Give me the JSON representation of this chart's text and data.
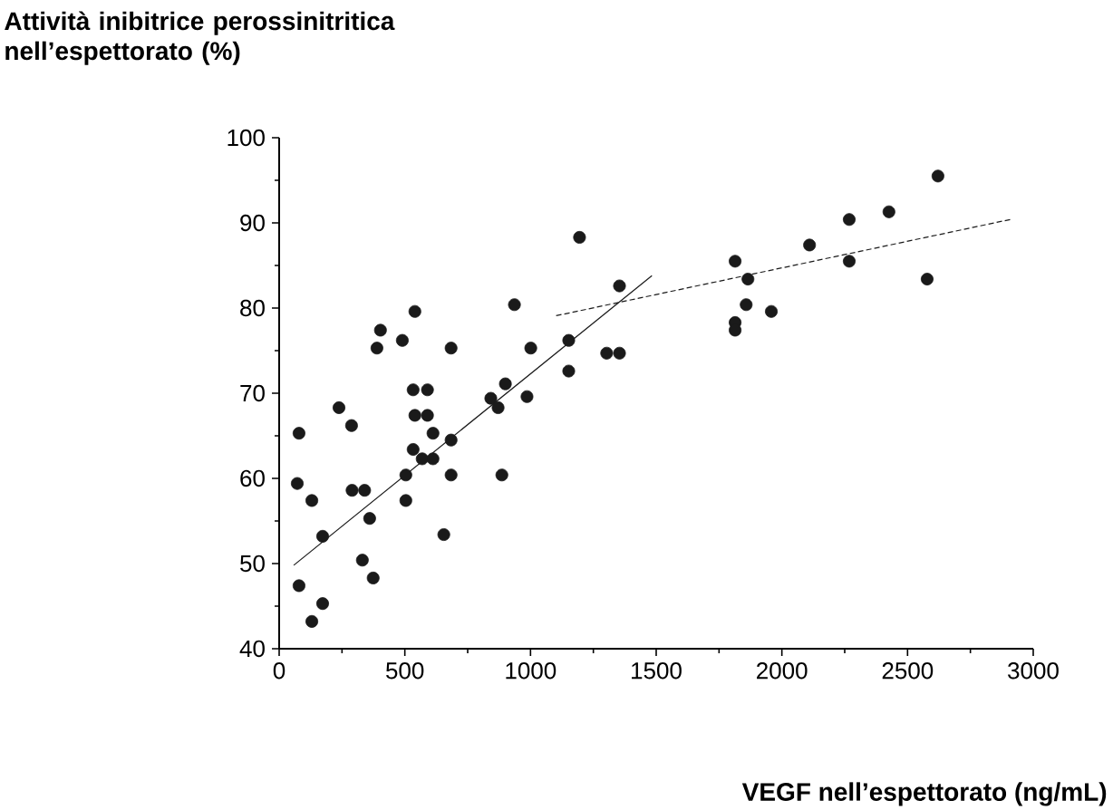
{
  "chart_data": {
    "type": "scatter",
    "annotations": [
      "Attività inibitrice perossinitritica nell’espettorato (%)"
    ],
    "xlabel": "VEGF nell’espettorato (ng/mL)",
    "xlim": [
      0,
      3000
    ],
    "ylim": [
      40,
      100
    ],
    "xticks": [
      0,
      500,
      1000,
      1500,
      2000,
      2500,
      3000
    ],
    "yticks": [
      40,
      50,
      60,
      70,
      80,
      90,
      100
    ],
    "series": [
      {
        "type": "scatter",
        "color": "#1a1a1a",
        "marker": "circle",
        "x": [
          79,
          72,
          130,
          79,
          130,
          173,
          173,
          238,
          288,
          290,
          340,
          360,
          331,
          374,
          389,
          403,
          490,
          540,
          504,
          504,
          533,
          590,
          540,
          590,
          533,
          569,
          612,
          612,
          655,
          684,
          684,
          684,
          842,
          871,
          900,
          886,
          936,
          1001,
          986,
          1152,
          1152,
          1195,
          1354,
          1303,
          1354,
          2621,
          2426,
          2268,
          2110,
          1814,
          1865,
          2268,
          2578,
          1858,
          1958,
          1814,
          1814
        ],
        "values": [
          65.3,
          59.4,
          57.4,
          47.4,
          43.2,
          45.3,
          53.2,
          68.3,
          66.2,
          58.6,
          58.6,
          55.3,
          50.4,
          48.3,
          75.3,
          77.4,
          76.2,
          79.6,
          60.4,
          57.4,
          70.4,
          70.4,
          67.4,
          67.4,
          63.4,
          62.3,
          62.3,
          65.3,
          53.4,
          75.3,
          64.5,
          60.4,
          69.4,
          68.3,
          71.1,
          60.4,
          80.4,
          75.3,
          69.6,
          76.2,
          72.6,
          88.3,
          82.6,
          74.7,
          74.7,
          95.5,
          91.3,
          90.4,
          87.4,
          85.5,
          83.4,
          85.5,
          83.4,
          80.4,
          79.6,
          78.3,
          77.4
        ]
      },
      {
        "type": "line",
        "color": "#1a1a1a",
        "line_style": "solid",
        "x": [
          58,
          1483
        ],
        "values": [
          49.8,
          83.8
        ]
      },
      {
        "type": "line",
        "color": "#1a1a1a",
        "line_style": "dashed",
        "x": [
          1102,
          2909
        ],
        "values": [
          79.1,
          90.4
        ]
      }
    ]
  }
}
